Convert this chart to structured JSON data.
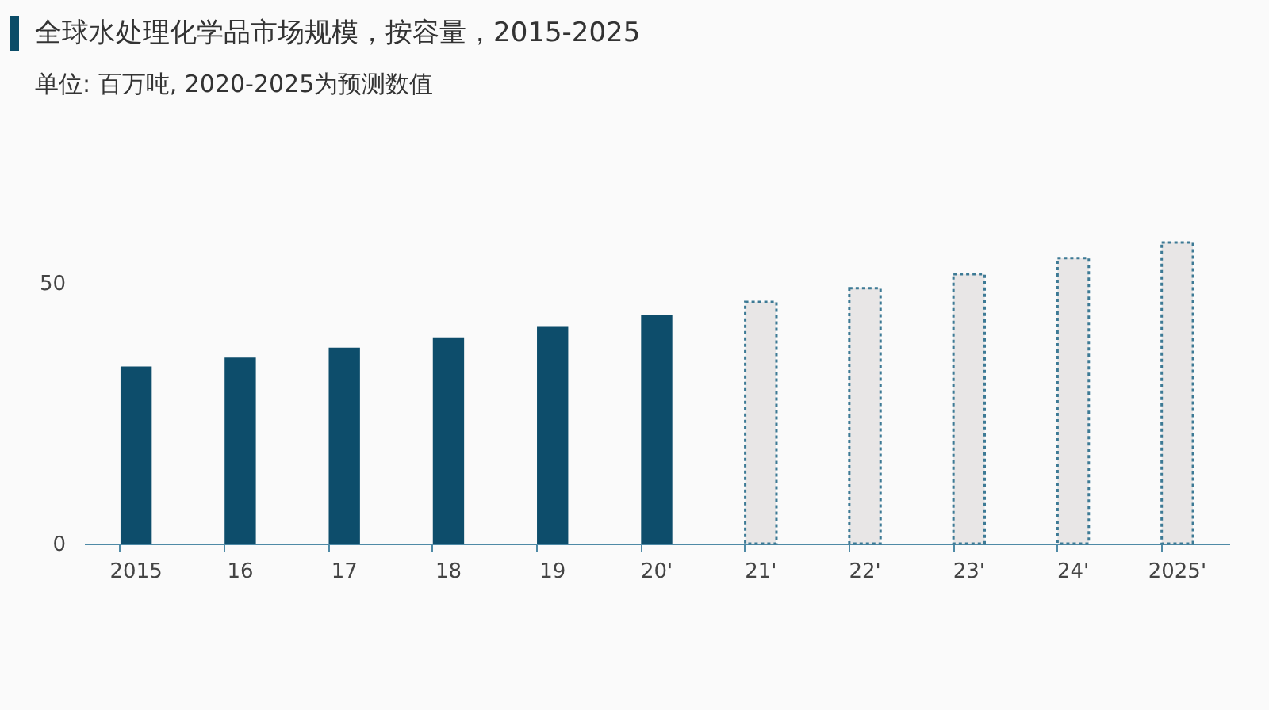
{
  "chart_data": {
    "type": "bar",
    "title": "全球水处理化学品市场规模，按容量，2015-2025",
    "subtitle": "单位: 百万吨, 2020-2025为预测数值",
    "categories": [
      "2015",
      "16",
      "17",
      "18",
      "19",
      "20'",
      "21'",
      "22'",
      "23'",
      "24'",
      "2025'"
    ],
    "series": [
      {
        "color": "#0d4d6b",
        "values": [
          34.0,
          35.7,
          37.6,
          39.6,
          41.6,
          43.9,
          null,
          null,
          null,
          null,
          null
        ]
      },
      {
        "color": "#e8e6e6",
        "line_style": "dotted",
        "values": [
          null,
          null,
          null,
          null,
          null,
          null,
          46.4,
          49.0,
          51.7,
          54.8,
          57.8
        ]
      }
    ],
    "ylim": [
      0,
      57.8
    ],
    "yticks": [
      0,
      50
    ],
    "grid": false,
    "legend": false
  }
}
